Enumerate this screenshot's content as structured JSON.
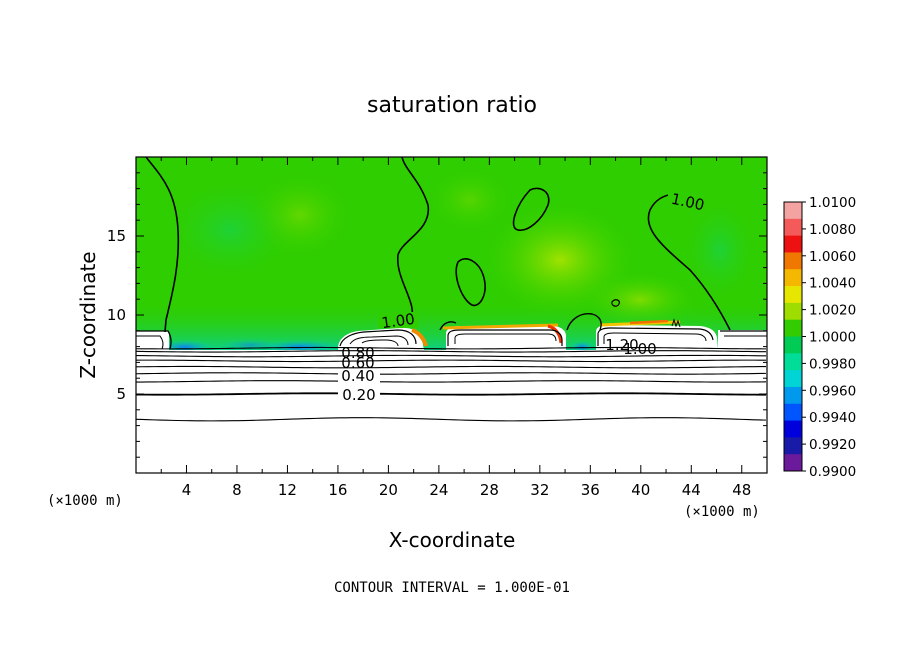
{
  "chart_data": {
    "type": "heatmap",
    "title": "saturation ratio",
    "xlabel": "X-coordinate",
    "ylabel": "Z-coordinate",
    "x_unit": "(×1000 m)",
    "y_unit": "(×1000 m)",
    "xlim": [
      0,
      50
    ],
    "ylim": [
      0,
      20
    ],
    "x_ticks": [
      4,
      8,
      12,
      16,
      20,
      24,
      28,
      32,
      36,
      40,
      44,
      48
    ],
    "y_ticks": [
      5,
      10,
      15
    ],
    "contour_interval_text": "CONTOUR INTERVAL = 1.000E-01",
    "colorbar": {
      "labels": [
        "1.0100",
        "1.0080",
        "1.0060",
        "1.0040",
        "1.0020",
        "1.0000",
        "0.9980",
        "0.9960",
        "0.9940",
        "0.9920",
        "0.9900"
      ],
      "colors": [
        "#f4a3a3",
        "#f45a5a",
        "#ee1111",
        "#f07800",
        "#f5b800",
        "#e6e600",
        "#9fdd00",
        "#33cc00",
        "#00cc55",
        "#00dd99",
        "#00d4d4",
        "#0099ee",
        "#0055ff",
        "#0000dd",
        "#1a1aa8",
        "#6a1a9a"
      ]
    },
    "contour_labels": [
      "1.00",
      "1.00",
      "1.00",
      "1.20",
      "0.80",
      "0.60",
      "0.40",
      "0.20"
    ],
    "stable_layer_contours": [
      3.4,
      5.0,
      5.8,
      6.3,
      6.7,
      7.1,
      7.4,
      7.7,
      7.9
    ]
  }
}
